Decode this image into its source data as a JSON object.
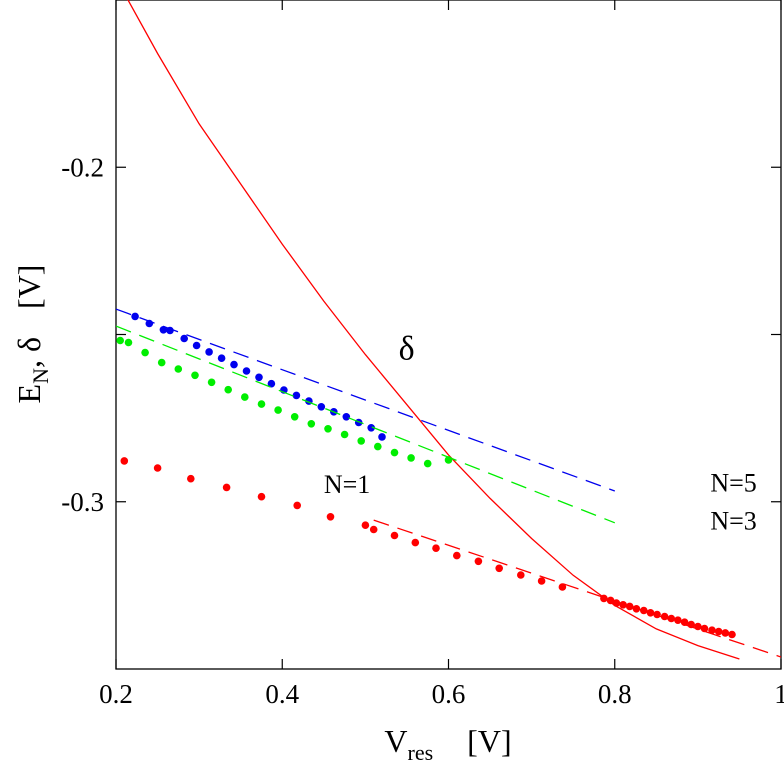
{
  "chart_data": {
    "type": "line",
    "title": "",
    "xlabel": {
      "main": "V",
      "sub": "res",
      "unit": "[V]"
    },
    "ylabel": {
      "main": "E",
      "sub": "N",
      "rest": ", δ",
      "unit": "[V]"
    },
    "xlim": [
      0.2,
      1.0
    ],
    "ylim": [
      -0.35,
      -0.15
    ],
    "grid": false,
    "x_ticks": [
      {
        "value": 0.2,
        "label": "0.2"
      },
      {
        "value": 0.4,
        "label": "0.4"
      },
      {
        "value": 0.6,
        "label": "0.6"
      },
      {
        "value": 0.8,
        "label": "0.8"
      },
      {
        "value": 1.0,
        "label": "1"
      }
    ],
    "y_ticks": [
      {
        "value": -0.2,
        "label": "-0.2"
      },
      {
        "value": -0.25,
        "label": ""
      },
      {
        "value": -0.3,
        "label": "-0.3"
      }
    ],
    "colors": {
      "N1": "#ff0000",
      "N3": "#00ee00",
      "N5": "#0000ee",
      "delta": "#ff0000"
    },
    "series": [
      {
        "name": "delta",
        "style": "solid",
        "color": "#ff0000",
        "x": [
          0.21,
          0.25,
          0.3,
          0.35,
          0.4,
          0.45,
          0.5,
          0.55,
          0.6,
          0.65,
          0.7,
          0.75,
          0.8,
          0.85,
          0.9,
          0.95
        ],
        "y": [
          -0.148,
          -0.166,
          -0.187,
          -0.205,
          -0.223,
          -0.24,
          -0.256,
          -0.271,
          -0.286,
          -0.299,
          -0.311,
          -0.322,
          -0.331,
          -0.338,
          -0.343,
          -0.347
        ]
      },
      {
        "name": "N=5 dots",
        "style": "dots",
        "color": "#0000ee",
        "x": [
          0.223,
          0.24,
          0.257,
          0.265,
          0.282,
          0.297,
          0.312,
          0.327,
          0.342,
          0.357,
          0.372,
          0.387,
          0.402,
          0.417,
          0.432,
          0.447,
          0.462,
          0.477,
          0.492,
          0.507,
          0.52
        ],
        "y": [
          -0.2446,
          -0.2467,
          -0.2486,
          -0.2488,
          -0.2512,
          -0.2533,
          -0.2552,
          -0.2571,
          -0.259,
          -0.2609,
          -0.2628,
          -0.2647,
          -0.2666,
          -0.2682,
          -0.2699,
          -0.2716,
          -0.2731,
          -0.2746,
          -0.2763,
          -0.2779,
          -0.2806
        ]
      },
      {
        "name": "N=5 fit",
        "style": "dashed",
        "color": "#0000ee",
        "x": [
          0.2,
          0.8
        ],
        "y": [
          -0.2424,
          -0.2968
        ]
      },
      {
        "name": "N=3 dots",
        "style": "dots",
        "color": "#00ee00",
        "x": [
          0.205,
          0.215,
          0.235,
          0.255,
          0.275,
          0.295,
          0.315,
          0.335,
          0.355,
          0.375,
          0.395,
          0.415,
          0.435,
          0.455,
          0.475,
          0.495,
          0.515,
          0.535,
          0.555,
          0.575,
          0.6
        ],
        "y": [
          -0.2518,
          -0.2524,
          -0.2554,
          -0.2584,
          -0.2603,
          -0.2622,
          -0.2643,
          -0.2665,
          -0.2687,
          -0.2708,
          -0.2726,
          -0.2746,
          -0.2767,
          -0.2782,
          -0.2799,
          -0.2818,
          -0.2835,
          -0.2853,
          -0.2869,
          -0.2886,
          -0.2875
        ]
      },
      {
        "name": "N=3 fit",
        "style": "dashed",
        "color": "#00ee00",
        "x": [
          0.2,
          0.8
        ],
        "y": [
          -0.2475,
          -0.3063
        ]
      },
      {
        "name": "N=1 dots",
        "style": "dots",
        "color": "#ff0000",
        "x": [
          0.21,
          0.25,
          0.29,
          0.333,
          0.375,
          0.418,
          0.458,
          0.5,
          0.51,
          0.535,
          0.56,
          0.585,
          0.61,
          0.636,
          0.661,
          0.687,
          0.712,
          0.737,
          0.787,
          0.795,
          0.802,
          0.81,
          0.818,
          0.826,
          0.835,
          0.843,
          0.851,
          0.86,
          0.868,
          0.876,
          0.884,
          0.892,
          0.9,
          0.908,
          0.917,
          0.925,
          0.933,
          0.941
        ],
        "y": [
          -0.2878,
          -0.2899,
          -0.2931,
          -0.2957,
          -0.2985,
          -0.3011,
          -0.3045,
          -0.307,
          -0.3083,
          -0.3101,
          -0.3122,
          -0.3139,
          -0.3161,
          -0.3178,
          -0.3199,
          -0.3219,
          -0.3237,
          -0.3255,
          -0.3289,
          -0.3295,
          -0.3303,
          -0.3308,
          -0.3313,
          -0.332,
          -0.3325,
          -0.3332,
          -0.3337,
          -0.3343,
          -0.3349,
          -0.3354,
          -0.336,
          -0.3367,
          -0.3373,
          -0.3379,
          -0.3384,
          -0.3388,
          -0.3392,
          -0.3397
        ]
      },
      {
        "name": "N=1 fit",
        "style": "dashed",
        "color": "#ff0000",
        "x": [
          0.51,
          1.0
        ],
        "y": [
          -0.3055,
          -0.3464
        ]
      }
    ],
    "annotations": [
      {
        "text": "δ",
        "x": 0.54,
        "y": -0.2575,
        "kind": "delta"
      },
      {
        "text": "N=1",
        "x": 0.45,
        "y": -0.2974,
        "kind": "label"
      },
      {
        "text": "N=5",
        "x": 0.915,
        "y": -0.297,
        "kind": "label"
      },
      {
        "text": "N=3",
        "x": 0.915,
        "y": -0.3083,
        "kind": "label"
      }
    ]
  }
}
